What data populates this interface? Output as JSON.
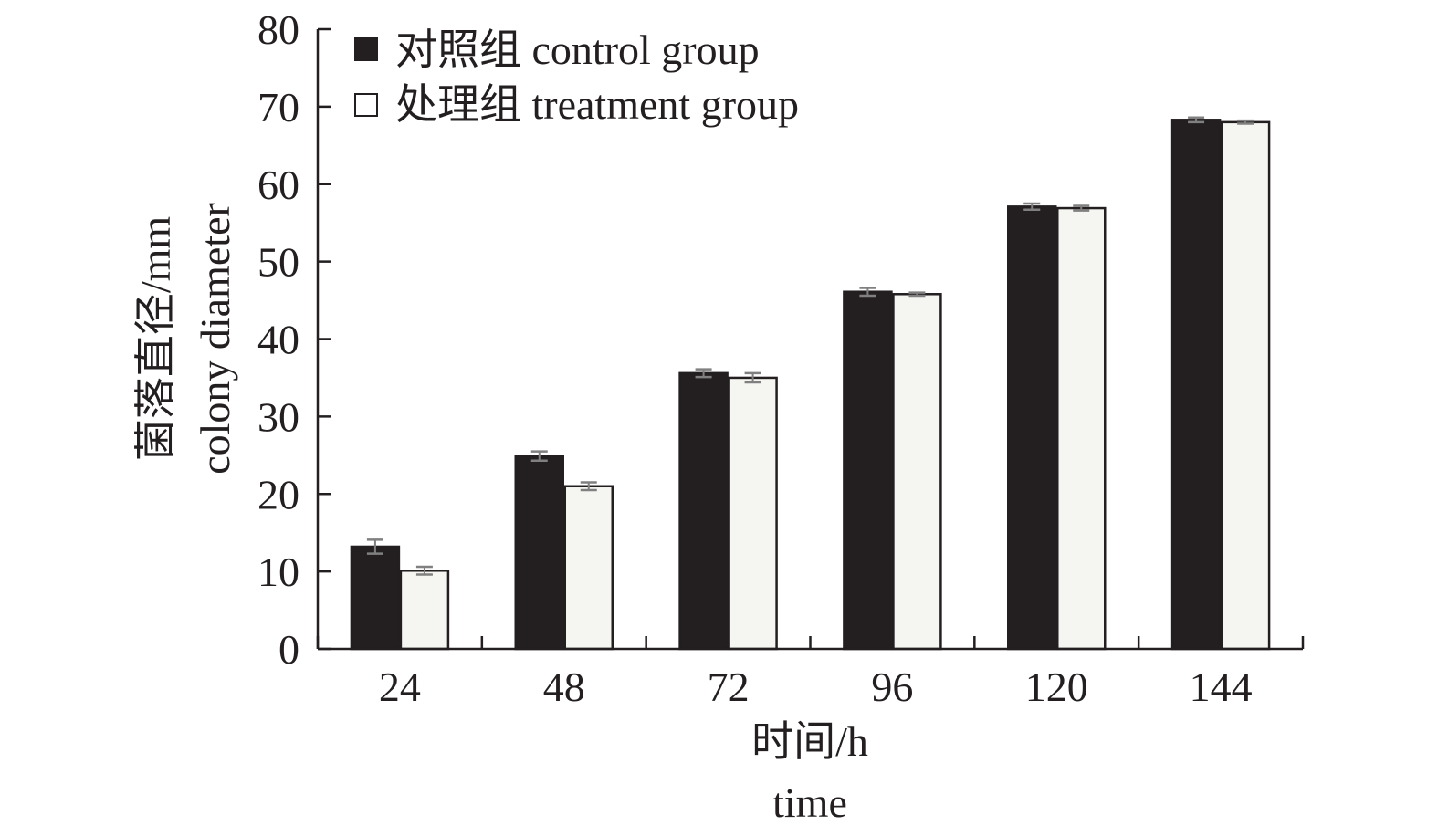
{
  "chart_data": {
    "type": "bar",
    "categories": [
      "24",
      "48",
      "72",
      "96",
      "120",
      "144"
    ],
    "series": [
      {
        "name": "对照组 control group",
        "values": [
          13.2,
          24.9,
          35.6,
          46.1,
          57.1,
          68.3
        ],
        "errors": [
          0.9,
          0.6,
          0.5,
          0.5,
          0.4,
          0.3
        ],
        "color": "#231f20"
      },
      {
        "name": "处理组 treatment group",
        "values": [
          10.1,
          21.0,
          35.0,
          45.8,
          56.9,
          68.0
        ],
        "errors": [
          0.5,
          0.5,
          0.6,
          0.2,
          0.3,
          0.2
        ],
        "color": "#f5f6f2"
      }
    ],
    "xlabel": "时间/h",
    "xlabel_en": "time",
    "ylabel": "菌落直径/mm",
    "ylabel_en": "colony diameter",
    "ylim": [
      0,
      80
    ],
    "yticks": [
      0,
      10,
      20,
      30,
      40,
      50,
      60,
      70,
      80
    ],
    "grid": false,
    "legend_position": "top-left",
    "error_bar_color": "#808080"
  }
}
